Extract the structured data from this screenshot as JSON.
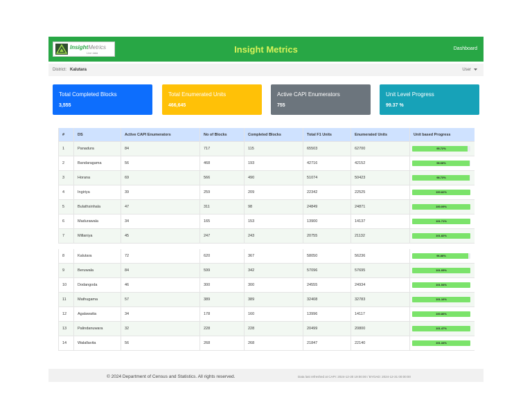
{
  "header": {
    "logo_brand": "Insight",
    "logo_brand_suffix": "Metrics",
    "logo_tagline": "Live data",
    "title": "Insight Metrics",
    "nav_link": "Dashboard"
  },
  "breadcrumb": {
    "label": "District:",
    "district": "Kalutara",
    "user": "User"
  },
  "cards": [
    {
      "title": "Total Completed Blocks",
      "value": "3,555"
    },
    {
      "title": "Total Enumerated Units",
      "value": "466,645"
    },
    {
      "title": "Active CAPI Enumerators",
      "value": "755"
    },
    {
      "title": "Unit Level Progress",
      "value": "99.37 %"
    }
  ],
  "table": {
    "columns": [
      "#",
      "DS",
      "Active CAPI Enumerators",
      "No of Blocks",
      "Completed Blocks",
      "Total F1 Units",
      "Enumerated Units",
      "Unit based Progress"
    ],
    "rows": [
      [
        1,
        "Panadura",
        84,
        717,
        115,
        65503,
        62700,
        {
          "value": 95.72,
          "label": "95.72%"
        }
      ],
      [
        2,
        "Bandaragama",
        56,
        468,
        193,
        42716,
        42152,
        {
          "value": 98.68,
          "label": "98.68%"
        }
      ],
      [
        3,
        "Horana",
        69,
        566,
        490,
        51074,
        50423,
        {
          "value": 98.73,
          "label": "98.73%"
        }
      ],
      [
        4,
        "Ingiriya",
        39,
        259,
        209,
        22342,
        22525,
        {
          "value": 100.82,
          "label": "100.82%"
        }
      ],
      [
        5,
        "Bulathsinhala",
        47,
        311,
        98,
        24849,
        24871,
        {
          "value": 100.09,
          "label": "100.09%"
        }
      ],
      [
        6,
        "Madurawala",
        34,
        165,
        153,
        13900,
        14137,
        {
          "value": 101.71,
          "label": "101.71%"
        }
      ],
      [
        7,
        "Millaniya",
        45,
        247,
        243,
        20755,
        21132,
        {
          "value": 101.82,
          "label": "101.82%"
        }
      ],
      [
        8,
        "Kalutara",
        72,
        620,
        367,
        58050,
        56236,
        {
          "value": 96.88,
          "label": "96.88%"
        }
      ],
      [
        9,
        "Beruwala",
        84,
        599,
        342,
        57096,
        57695,
        {
          "value": 101.05,
          "label": "101.05%"
        }
      ],
      [
        10,
        "Dodangoda",
        46,
        300,
        300,
        24555,
        24934,
        {
          "value": 101.54,
          "label": "101.54%"
        }
      ],
      [
        11,
        "Mathugama",
        57,
        389,
        389,
        32408,
        32783,
        {
          "value": 101.16,
          "label": "101.16%"
        }
      ],
      [
        12,
        "Agalawatta",
        34,
        178,
        160,
        13996,
        14117,
        {
          "value": 100.86,
          "label": "100.86%"
        }
      ],
      [
        13,
        "Palindanuwara",
        32,
        228,
        228,
        20499,
        20800,
        {
          "value": 101.47,
          "label": "101.47%"
        }
      ],
      [
        14,
        "Walallavita",
        56,
        268,
        268,
        21847,
        22140,
        {
          "value": 101.34,
          "label": "101.34%"
        }
      ]
    ]
  },
  "footer": {
    "copyright": "© 2024 Department of Census and Statistics. All rights reserved.",
    "refresh": "Data last refreshed at CAPI: 2024-12-30 19:00:00 / BYOAD: 2024-12-31 00:00:00"
  }
}
